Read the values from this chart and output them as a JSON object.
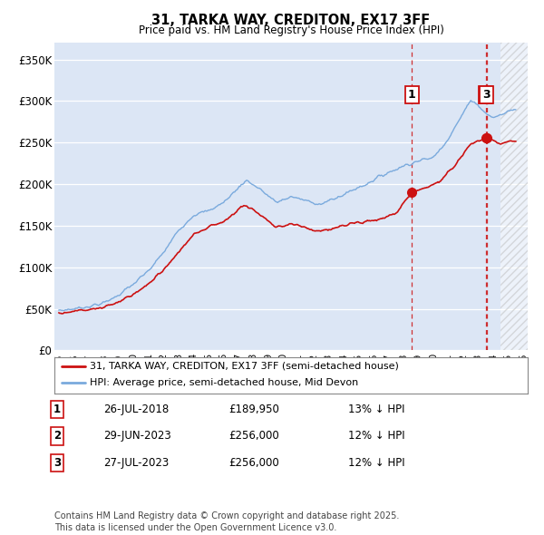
{
  "title": "31, TARKA WAY, CREDITON, EX17 3FF",
  "subtitle": "Price paid vs. HM Land Registry's House Price Index (HPI)",
  "legend_line1": "31, TARKA WAY, CREDITON, EX17 3FF (semi-detached house)",
  "legend_line2": "HPI: Average price, semi-detached house, Mid Devon",
  "hpi_color": "#7aaadd",
  "price_color": "#cc1111",
  "marker_color": "#cc1111",
  "vline_color": "#cc1111",
  "background_color": "#dce6f5",
  "hatch_color": "#c8d4e8",
  "grid_color": "#ffffff",
  "ytick_labels": [
    "£0",
    "£50K",
    "£100K",
    "£150K",
    "£200K",
    "£250K",
    "£300K",
    "£350K"
  ],
  "yticks": [
    0,
    50000,
    100000,
    150000,
    200000,
    250000,
    300000,
    350000
  ],
  "xlim_start": 1994.7,
  "xlim_end": 2026.3,
  "ylim": [
    0,
    370000
  ],
  "hatch_start": 2024.5,
  "transactions": [
    {
      "label": "1",
      "date_decimal": 2018.57,
      "price": 189950
    },
    {
      "label": "2",
      "date_decimal": 2023.49,
      "price": 256000
    },
    {
      "label": "3",
      "date_decimal": 2023.57,
      "price": 256000
    }
  ],
  "transaction_table": [
    {
      "num": "1",
      "date": "26-JUL-2018",
      "price": "£189,950",
      "pct": "13% ↓ HPI"
    },
    {
      "num": "2",
      "date": "29-JUN-2023",
      "price": "£256,000",
      "pct": "12% ↓ HPI"
    },
    {
      "num": "3",
      "date": "27-JUL-2023",
      "price": "£256,000",
      "pct": "12% ↓ HPI"
    }
  ],
  "footnote": "Contains HM Land Registry data © Crown copyright and database right 2025.\nThis data is licensed under the Open Government Licence v3.0."
}
